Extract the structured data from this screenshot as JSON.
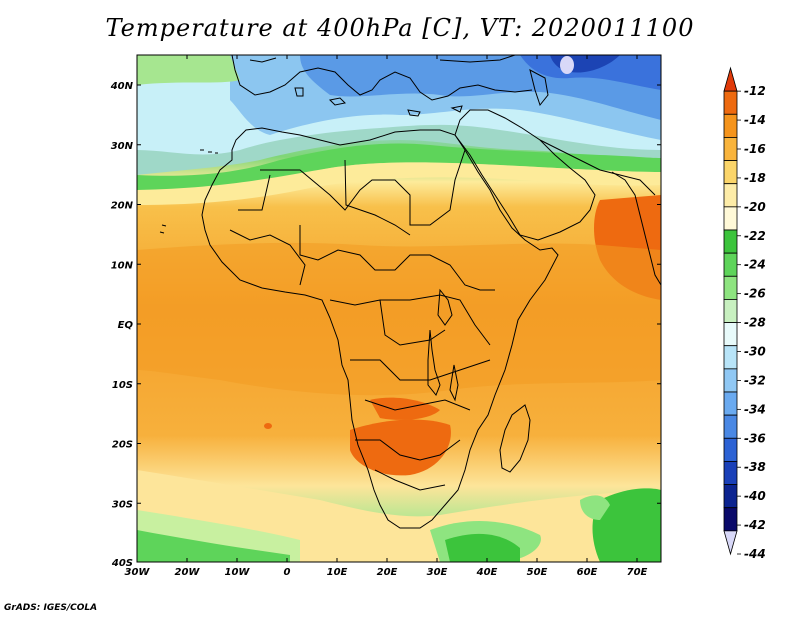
{
  "title": "Temperature at 400hPa [C], VT: 2020011100",
  "credit": "GrADS: IGES/COLA",
  "map": {
    "lon_labels": [
      "30W",
      "20W",
      "10W",
      "0",
      "10E",
      "20E",
      "30E",
      "40E",
      "50E",
      "60E",
      "70E"
    ],
    "lat_labels": [
      "40N",
      "30N",
      "20N",
      "10N",
      "EQ",
      "10S",
      "20S",
      "30S",
      "40S"
    ]
  },
  "legend": {
    "labels": [
      "-12",
      "-14",
      "-16",
      "-18",
      "-20",
      "-22",
      "-24",
      "-26",
      "-28",
      "-30",
      "-32",
      "-34",
      "-36",
      "-38",
      "-40",
      "-42",
      "-44"
    ],
    "colors": [
      "#e03a0a",
      "#ee6a10",
      "#f5941c",
      "#f9b43c",
      "#fbd56a",
      "#fdeca8",
      "#fff9d8",
      "#3cc43c",
      "#5ed45a",
      "#8ee480",
      "#c8f0c0",
      "#e8fafa",
      "#b8e4f8",
      "#90c8f4",
      "#6aaaf0",
      "#4a88e4",
      "#2c62d4",
      "#1a40b8",
      "#0c2490",
      "#0a0a6a",
      "#d8d8f8"
    ]
  }
}
